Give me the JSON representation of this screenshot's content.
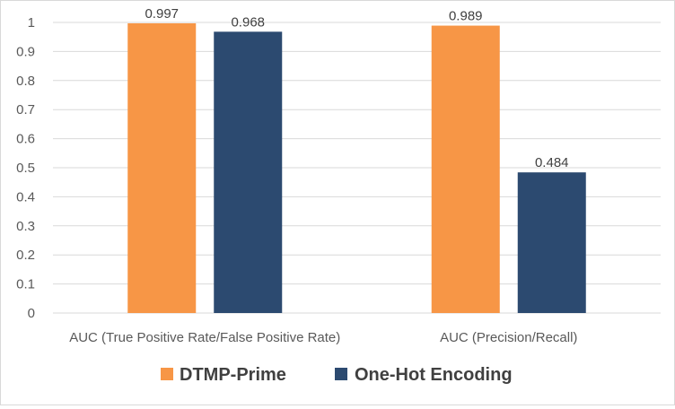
{
  "chart_data": {
    "type": "bar",
    "title": "",
    "xlabel": "",
    "ylabel": "",
    "categories": [
      "AUC (True Positive Rate/False Positive Rate)",
      "AUC (Precision/Recall)"
    ],
    "series": [
      {
        "name": "DTMP-Prime",
        "color": "#F79646",
        "values": [
          0.997,
          0.989
        ],
        "labels": [
          "0.997",
          "0.989"
        ]
      },
      {
        "name": "One-Hot Encoding",
        "color": "#2C4A70",
        "values": [
          0.968,
          0.484
        ],
        "labels": [
          "0.968",
          "0.484"
        ]
      }
    ],
    "ylim": [
      0,
      1
    ],
    "yticks": [
      "0",
      "0.1",
      "0.2",
      "0.3",
      "0.4",
      "0.5",
      "0.6",
      "0.7",
      "0.8",
      "0.9",
      "1"
    ],
    "grid": true,
    "legend_position": "bottom"
  }
}
